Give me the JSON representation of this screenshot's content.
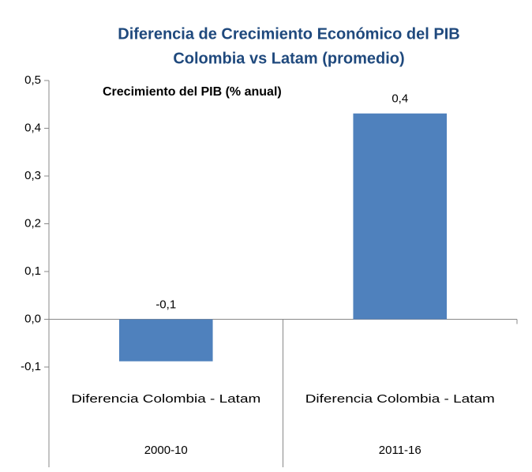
{
  "chart_data": {
    "type": "bar",
    "title": "Diferencia de Crecimiento Económico del PIB",
    "title_line2": "Colombia vs Latam (promedio)",
    "subtitle": "Crecimiento del PIB (% anual)",
    "categories": [
      "2000-10",
      "2011-16"
    ],
    "series": [
      {
        "name": "Diferencia Colombia - Latam",
        "color": "#4f81bd",
        "values": [
          -0.088,
          0.431
        ],
        "value_labels": [
          "-0,1",
          "0,4"
        ]
      }
    ],
    "ylim": [
      -0.1,
      0.5
    ],
    "yticks": [
      {
        "value": -0.1,
        "label": "-0,1"
      },
      {
        "value": 0,
        "label": "0,0"
      },
      {
        "value": 0.1,
        "label": "0,1"
      },
      {
        "value": 0.2,
        "label": "0,2"
      },
      {
        "value": 0.3,
        "label": "0,3"
      },
      {
        "value": 0.4,
        "label": "0,4"
      },
      {
        "value": 0.5,
        "label": "0,5"
      }
    ],
    "grid": false
  }
}
